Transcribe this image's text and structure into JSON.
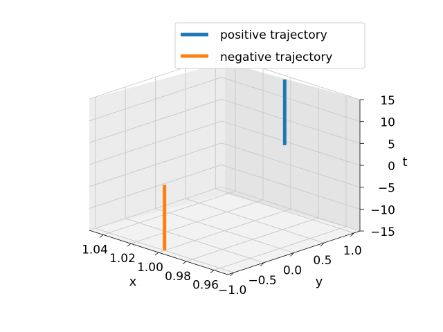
{
  "chart_data": {
    "type": "line",
    "projection": "3d",
    "title": "",
    "xlabel": "x",
    "ylabel": "y",
    "zlabel": "t",
    "xlim": [
      0.95,
      1.05
    ],
    "ylim": [
      -1.1,
      1.1
    ],
    "zlim": [
      -15,
      15
    ],
    "x_ticks": [
      0.96,
      0.98,
      1.0,
      1.02,
      1.04
    ],
    "x_tick_labels": [
      "0.96",
      "0.98",
      "1.00",
      "1.02",
      "1.04"
    ],
    "y_ticks": [
      -1.0,
      -0.5,
      0.0,
      0.5,
      1.0
    ],
    "y_tick_labels": [
      "−1.0",
      "−0.5",
      "0.0",
      "0.5",
      "1.0"
    ],
    "z_ticks": [
      15,
      10,
      5,
      0,
      -5,
      -10,
      -15
    ],
    "z_tick_labels": [
      "15",
      "10",
      "5",
      "0",
      "−5",
      "−10",
      "−15"
    ],
    "grid": true,
    "legend_position": "top-right",
    "series": [
      {
        "name": "positive trajectory",
        "color": "#1f77b4",
        "points": [
          {
            "x": 1.0,
            "y": 1.0,
            "t": 0
          },
          {
            "x": 1.0,
            "y": 1.0,
            "t": 15
          }
        ]
      },
      {
        "name": "negative trajectory",
        "color": "#ff7f0e",
        "points": [
          {
            "x": 1.0,
            "y": -1.0,
            "t": 0
          },
          {
            "x": 1.0,
            "y": -1.0,
            "t": -15
          }
        ]
      }
    ]
  }
}
